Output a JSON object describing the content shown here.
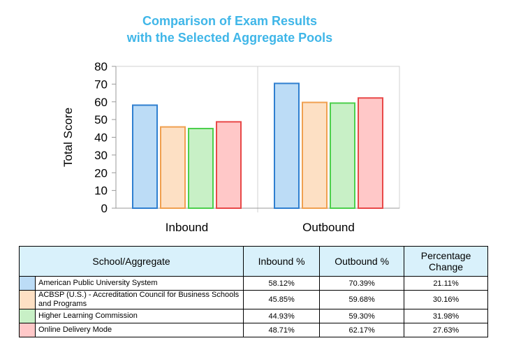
{
  "chart_data": {
    "type": "bar",
    "title_lines": [
      "Comparison of Exam Results",
      "with the Selected Aggregate Pools"
    ],
    "ylabel": "Total Score",
    "ylim": [
      0,
      80
    ],
    "yticks": [
      0,
      10,
      20,
      30,
      40,
      50,
      60,
      70,
      80
    ],
    "categories": [
      "Inbound",
      "Outbound"
    ],
    "series": [
      {
        "name": "American Public University System",
        "values": [
          58.12,
          70.39
        ],
        "fill": "#bcdcf6",
        "stroke": "#2f7fd0"
      },
      {
        "name": "ACBSP (U.S.) - Accreditation Council for Business Schools and Programs",
        "values": [
          45.85,
          59.68
        ],
        "fill": "#fde0c4",
        "stroke": "#f0a050"
      },
      {
        "name": "Higher Learning Commission",
        "values": [
          44.93,
          59.3
        ],
        "fill": "#c8f0c6",
        "stroke": "#4ccf4c"
      },
      {
        "name": "Online Delivery Mode",
        "values": [
          48.71,
          62.17
        ],
        "fill": "#ffc8c8",
        "stroke": "#e84848"
      }
    ],
    "grid": "vertical gridlines between categories",
    "legend": "table below chart"
  },
  "table": {
    "headers": [
      "School/Aggregate",
      "Inbound %",
      "Outbound %",
      "Percentage Change"
    ],
    "rows": [
      {
        "name": "American Public University System",
        "inbound": "58.12%",
        "outbound": "70.39%",
        "change": "21.11%",
        "color": "#bcdcf6"
      },
      {
        "name": "ACBSP (U.S.) - Accreditation Council for Business Schools and Programs",
        "inbound": "45.85%",
        "outbound": "59.68%",
        "change": "30.16%",
        "color": "#fde0c4"
      },
      {
        "name": "Higher Learning Commission",
        "inbound": "44.93%",
        "outbound": "59.30%",
        "change": "31.98%",
        "color": "#c8f0c6"
      },
      {
        "name": "Online Delivery Mode",
        "inbound": "48.71%",
        "outbound": "62.17%",
        "change": "27.63%",
        "color": "#ffc8c8"
      }
    ]
  }
}
